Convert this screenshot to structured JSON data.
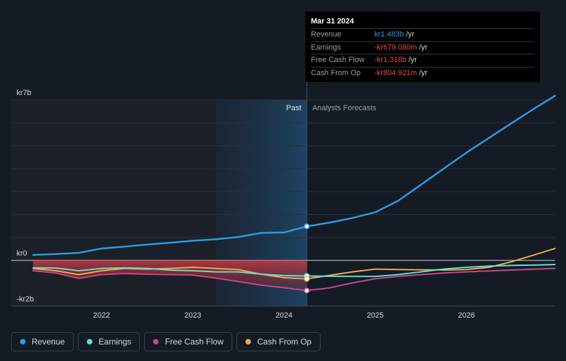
{
  "chart_data": {
    "type": "line",
    "title": "",
    "xlabel": "",
    "ylabel": "",
    "y_unit": "kr (billions)",
    "ylim": [
      -2,
      7
    ],
    "xlim": [
      2021.25,
      2026.97
    ],
    "x_ticks": [
      2022,
      2023,
      2024,
      2025,
      2026
    ],
    "x_tick_labels": [
      "2022",
      "2023",
      "2024",
      "2025",
      "2026"
    ],
    "y_labels": [
      {
        "value": 7,
        "text": "kr7b"
      },
      {
        "value": 0,
        "text": "kr0"
      },
      {
        "value": -2,
        "text": "-kr2b"
      }
    ],
    "gridlines": [
      7,
      6,
      5,
      4,
      3,
      2,
      1,
      0,
      -2
    ],
    "past_boundary": 2024.25,
    "highlight_start": 2023.25,
    "past_label": "Past",
    "forecast_label": "Analysts Forecasts",
    "series": [
      {
        "name": "Revenue",
        "color": "#2f9be6",
        "points": [
          [
            2021.25,
            0.24
          ],
          [
            2021.5,
            0.28
          ],
          [
            2021.75,
            0.33
          ],
          [
            2022.0,
            0.52
          ],
          [
            2022.25,
            0.6
          ],
          [
            2022.5,
            0.69
          ],
          [
            2022.75,
            0.77
          ],
          [
            2023.0,
            0.86
          ],
          [
            2023.25,
            0.92
          ],
          [
            2023.5,
            1.02
          ],
          [
            2023.75,
            1.2
          ],
          [
            2024.0,
            1.22
          ],
          [
            2024.25,
            1.483
          ],
          [
            2024.5,
            1.65
          ],
          [
            2024.75,
            1.85
          ],
          [
            2025.0,
            2.1
          ],
          [
            2025.25,
            2.6
          ],
          [
            2025.5,
            3.3
          ],
          [
            2025.75,
            4.0
          ],
          [
            2026.0,
            4.7
          ],
          [
            2026.25,
            5.35
          ],
          [
            2026.5,
            6.0
          ],
          [
            2026.75,
            6.64
          ],
          [
            2026.97,
            7.18
          ]
        ]
      },
      {
        "name": "Earnings",
        "color": "#5fe3cf",
        "points": [
          [
            2021.25,
            -0.32
          ],
          [
            2021.5,
            -0.33
          ],
          [
            2021.75,
            -0.45
          ],
          [
            2022.0,
            -0.35
          ],
          [
            2022.25,
            -0.32
          ],
          [
            2022.5,
            -0.35
          ],
          [
            2022.75,
            -0.42
          ],
          [
            2023.0,
            -0.45
          ],
          [
            2023.25,
            -0.5
          ],
          [
            2023.5,
            -0.5
          ],
          [
            2023.75,
            -0.6
          ],
          [
            2024.0,
            -0.66
          ],
          [
            2024.25,
            -0.679
          ],
          [
            2024.5,
            -0.69
          ],
          [
            2024.75,
            -0.7
          ],
          [
            2025.0,
            -0.7
          ],
          [
            2025.25,
            -0.62
          ],
          [
            2025.5,
            -0.5
          ],
          [
            2025.75,
            -0.38
          ],
          [
            2026.0,
            -0.3
          ],
          [
            2026.25,
            -0.25
          ],
          [
            2026.5,
            -0.22
          ],
          [
            2026.75,
            -0.2
          ],
          [
            2026.97,
            -0.18
          ]
        ]
      },
      {
        "name": "Free Cash Flow",
        "color": "#c8478b",
        "points": [
          [
            2021.25,
            -0.45
          ],
          [
            2021.5,
            -0.55
          ],
          [
            2021.75,
            -0.78
          ],
          [
            2022.0,
            -0.62
          ],
          [
            2022.25,
            -0.57
          ],
          [
            2022.5,
            -0.6
          ],
          [
            2022.75,
            -0.62
          ],
          [
            2023.0,
            -0.64
          ],
          [
            2023.25,
            -0.77
          ],
          [
            2023.5,
            -0.92
          ],
          [
            2023.75,
            -1.08
          ],
          [
            2024.0,
            -1.19
          ],
          [
            2024.25,
            -1.316
          ],
          [
            2024.5,
            -1.2
          ],
          [
            2024.75,
            -0.98
          ],
          [
            2025.0,
            -0.8
          ],
          [
            2025.25,
            -0.7
          ],
          [
            2025.5,
            -0.62
          ],
          [
            2025.75,
            -0.55
          ],
          [
            2026.0,
            -0.5
          ],
          [
            2026.25,
            -0.46
          ],
          [
            2026.5,
            -0.42
          ],
          [
            2026.75,
            -0.38
          ],
          [
            2026.97,
            -0.35
          ]
        ]
      },
      {
        "name": "Cash From Op",
        "color": "#f1a851",
        "points": [
          [
            2021.25,
            -0.35
          ],
          [
            2021.5,
            -0.45
          ],
          [
            2021.75,
            -0.62
          ],
          [
            2022.0,
            -0.45
          ],
          [
            2022.25,
            -0.35
          ],
          [
            2022.5,
            -0.38
          ],
          [
            2022.75,
            -0.35
          ],
          [
            2023.0,
            -0.3
          ],
          [
            2023.25,
            -0.35
          ],
          [
            2023.5,
            -0.4
          ],
          [
            2023.75,
            -0.6
          ],
          [
            2024.0,
            -0.75
          ],
          [
            2024.25,
            -0.805
          ],
          [
            2024.5,
            -0.65
          ],
          [
            2024.75,
            -0.5
          ],
          [
            2025.0,
            -0.38
          ],
          [
            2025.25,
            -0.4
          ],
          [
            2025.5,
            -0.41
          ],
          [
            2025.75,
            -0.42
          ],
          [
            2026.0,
            -0.4
          ],
          [
            2026.25,
            -0.3
          ],
          [
            2026.5,
            -0.05
          ],
          [
            2026.75,
            0.25
          ],
          [
            2026.97,
            0.52
          ]
        ]
      }
    ]
  },
  "tooltip": {
    "date": "Mar 31 2024",
    "rows": [
      {
        "label": "Revenue",
        "value": "kr1.483b",
        "unit": "/yr"
      },
      {
        "label": "Earnings",
        "value": "-kr679.080m",
        "unit": "/yr"
      },
      {
        "label": "Free Cash Flow",
        "value": "-kr1.316b",
        "unit": "/yr"
      },
      {
        "label": "Cash From Op",
        "value": "-kr804.921m",
        "unit": "/yr"
      }
    ]
  },
  "legend": [
    {
      "label": "Revenue",
      "color": "#2f9be6"
    },
    {
      "label": "Earnings",
      "color": "#5fe3cf"
    },
    {
      "label": "Free Cash Flow",
      "color": "#c8478b"
    },
    {
      "label": "Cash From Op",
      "color": "#f1a851"
    }
  ],
  "colors": {
    "background": "#151b24",
    "past_region": "#1b2029",
    "highlight": "#1b3a55",
    "gridline": "#2a313b",
    "zero_line": "#d0d4d9",
    "negative_fill": "#d43a45"
  }
}
